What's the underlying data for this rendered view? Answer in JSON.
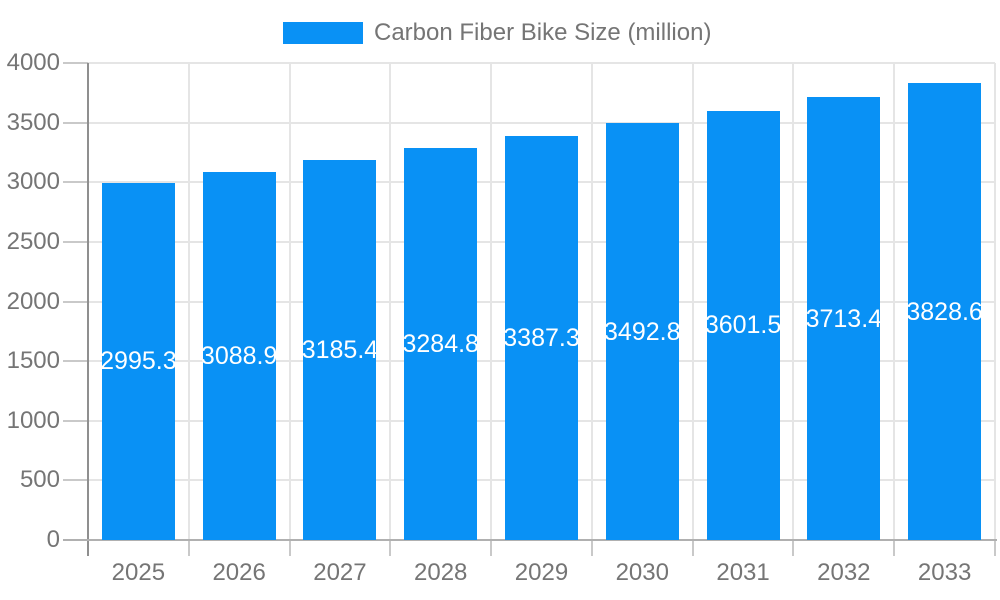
{
  "legend": {
    "label": "Carbon Fiber Bike Size (million)"
  },
  "chart_data": {
    "type": "bar",
    "title": "",
    "series_name": "Carbon Fiber Bike Size (million)",
    "categories": [
      "2025",
      "2026",
      "2027",
      "2028",
      "2029",
      "2030",
      "2031",
      "2032",
      "2033"
    ],
    "values": [
      2995.3,
      3088.9,
      3185.4,
      3284.8,
      3387.3,
      3492.8,
      3601.5,
      3713.4,
      3828.6
    ],
    "value_labels": [
      "2995.3",
      "3088.9",
      "3185.4",
      "3284.8",
      "3387.3",
      "3492.8",
      "3601.5",
      "3713.4",
      "3828.6"
    ],
    "xlabel": "",
    "ylabel": "",
    "ylim": [
      0,
      4000
    ],
    "ytick_interval": 500,
    "ytick_labels": [
      "0",
      "500",
      "1000",
      "1500",
      "2000",
      "2500",
      "3000",
      "3500",
      "4000"
    ],
    "grid": "on",
    "legend_position": "top-center",
    "value_label_position": "center-of-bar",
    "colors": {
      "bar": "#0991f5",
      "axis_text": "#757575",
      "legend_text": "#757575",
      "value_text": "#ffffff",
      "gridline": "#e5e5e5",
      "tick": "#c9c9c9",
      "y_axis_line": "#8f8f8f",
      "x_axis_line": "#b0b0b0"
    }
  }
}
